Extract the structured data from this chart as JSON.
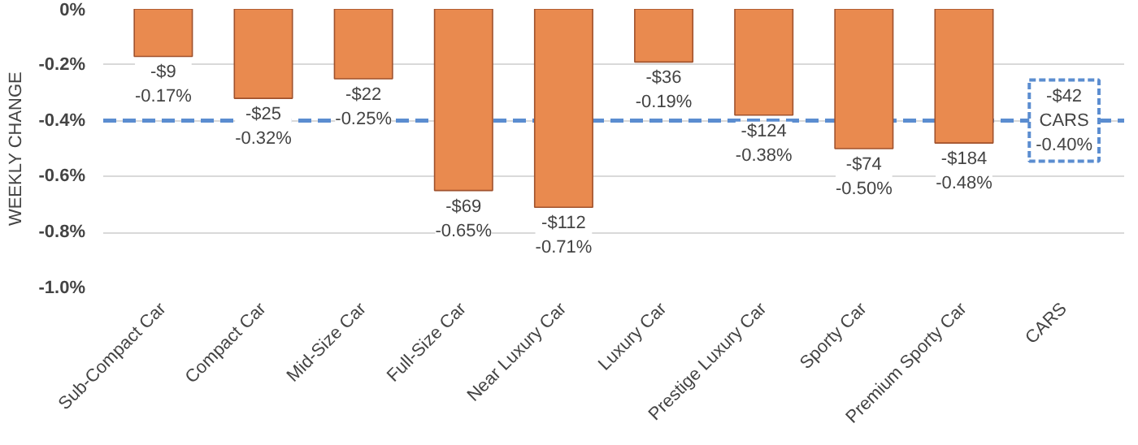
{
  "chart_data": {
    "type": "bar",
    "ylabel": "WEEKLY CHANGE",
    "categories": [
      "Sub-Compact Car",
      "Compact Car",
      "Mid-Size Car",
      "Full-Size Car",
      "Near Luxury Car",
      "Luxury Car",
      "Prestige Luxury Car",
      "Sporty Car",
      "Premium Sporty Car",
      "CARS"
    ],
    "values": [
      -0.17,
      -0.32,
      -0.25,
      -0.65,
      -0.71,
      -0.19,
      -0.38,
      -0.5,
      -0.48,
      null
    ],
    "value_labels": [
      "-$9\n-0.17%",
      "-$25\n-0.32%",
      "-$22\n-0.25%",
      "-$69\n-0.65%",
      "-$112\n-0.71%",
      "-$36\n-0.19%",
      "-$124\n-0.38%",
      "-$74\n-0.50%",
      "-$184\n-0.48%",
      null
    ],
    "color": "#e98a4f",
    "ylim": [
      -1.0,
      0
    ],
    "yticks": [
      {
        "value": 0,
        "label": "0%"
      },
      {
        "value": -0.2,
        "label": "-0.2%"
      },
      {
        "value": -0.4,
        "label": "-0.4%"
      },
      {
        "value": -0.6,
        "label": "-0.6%"
      },
      {
        "value": -0.8,
        "label": "-0.8%"
      },
      {
        "value": -1.0,
        "label": "-1.0%"
      }
    ],
    "grid": "y",
    "ref_lines": [
      {
        "axis": "y",
        "value": -0.4,
        "label": "-$42\nCARS\n-0.40%",
        "color": "#5b8dd0",
        "line_style": "dashed"
      }
    ]
  }
}
